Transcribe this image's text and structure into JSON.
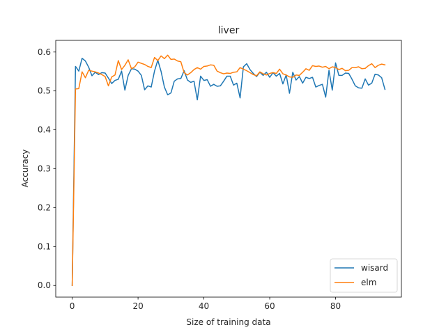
{
  "chart_data": {
    "type": "line",
    "title": "liver",
    "xlabel": "Size of training data",
    "ylabel": "Accuracy",
    "xlim": [
      -5,
      100
    ],
    "ylim": [
      -0.03,
      0.63
    ],
    "xticks": [
      0,
      20,
      40,
      60,
      80
    ],
    "xtick_labels": [
      "0",
      "20",
      "40",
      "60",
      "80"
    ],
    "yticks": [
      0.0,
      0.1,
      0.2,
      0.3,
      0.4,
      0.5,
      0.6
    ],
    "ytick_labels": [
      "0.0",
      "0.1",
      "0.2",
      "0.3",
      "0.4",
      "0.5",
      "0.6"
    ],
    "grid": false,
    "legend_position": "lower-right",
    "x": [
      0,
      1,
      2,
      3,
      4,
      5,
      6,
      7,
      8,
      9,
      10,
      11,
      12,
      13,
      14,
      15,
      16,
      17,
      18,
      19,
      20,
      21,
      22,
      23,
      24,
      25,
      26,
      27,
      28,
      29,
      30,
      31,
      32,
      33,
      34,
      35,
      36,
      37,
      38,
      39,
      40,
      41,
      42,
      43,
      44,
      45,
      46,
      47,
      48,
      49,
      50,
      51,
      52,
      53,
      54,
      55,
      56,
      57,
      58,
      59,
      60,
      61,
      62,
      63,
      64,
      65,
      66,
      67,
      68,
      69,
      70,
      71,
      72,
      73,
      74,
      75,
      76,
      77,
      78,
      79,
      80,
      81,
      82,
      83,
      84,
      85,
      86,
      87,
      88,
      89,
      90,
      91,
      92,
      93,
      94,
      95
    ],
    "series": [
      {
        "name": "wisard",
        "color": "#1f77b4",
        "values": [
          0.0,
          0.563,
          0.551,
          0.584,
          0.577,
          0.561,
          0.539,
          0.548,
          0.542,
          0.547,
          0.546,
          0.533,
          0.519,
          0.527,
          0.53,
          0.551,
          0.502,
          0.54,
          0.557,
          0.556,
          0.551,
          0.54,
          0.503,
          0.513,
          0.51,
          0.551,
          0.579,
          0.55,
          0.51,
          0.49,
          0.495,
          0.525,
          0.531,
          0.532,
          0.552,
          0.528,
          0.522,
          0.525,
          0.477,
          0.538,
          0.527,
          0.529,
          0.512,
          0.517,
          0.512,
          0.513,
          0.525,
          0.538,
          0.538,
          0.515,
          0.52,
          0.482,
          0.562,
          0.57,
          0.555,
          0.545,
          0.537,
          0.548,
          0.54,
          0.548,
          0.535,
          0.547,
          0.538,
          0.545,
          0.518,
          0.541,
          0.494,
          0.548,
          0.528,
          0.537,
          0.52,
          0.535,
          0.532,
          0.535,
          0.51,
          0.514,
          0.517,
          0.484,
          0.553,
          0.502,
          0.572,
          0.54,
          0.54,
          0.546,
          0.545,
          0.53,
          0.513,
          0.508,
          0.507,
          0.531,
          0.515,
          0.52,
          0.543,
          0.541,
          0.534,
          0.504
        ]
      },
      {
        "name": "elm",
        "color": "#ff7f0e",
        "values": [
          0.0,
          0.505,
          0.506,
          0.549,
          0.534,
          0.553,
          0.551,
          0.549,
          0.546,
          0.542,
          0.537,
          0.513,
          0.536,
          0.541,
          0.578,
          0.555,
          0.566,
          0.58,
          0.557,
          0.562,
          0.574,
          0.571,
          0.568,
          0.563,
          0.56,
          0.586,
          0.578,
          0.59,
          0.583,
          0.592,
          0.581,
          0.582,
          0.577,
          0.575,
          0.547,
          0.541,
          0.547,
          0.555,
          0.56,
          0.556,
          0.563,
          0.564,
          0.567,
          0.566,
          0.551,
          0.547,
          0.544,
          0.546,
          0.545,
          0.548,
          0.549,
          0.56,
          0.556,
          0.552,
          0.547,
          0.542,
          0.539,
          0.549,
          0.544,
          0.541,
          0.545,
          0.547,
          0.545,
          0.556,
          0.544,
          0.541,
          0.536,
          0.535,
          0.541,
          0.54,
          0.548,
          0.557,
          0.553,
          0.565,
          0.563,
          0.564,
          0.561,
          0.563,
          0.557,
          0.562,
          0.56,
          0.555,
          0.558,
          0.552,
          0.553,
          0.56,
          0.56,
          0.562,
          0.557,
          0.558,
          0.565,
          0.57,
          0.56,
          0.566,
          0.569,
          0.567
        ]
      }
    ]
  }
}
